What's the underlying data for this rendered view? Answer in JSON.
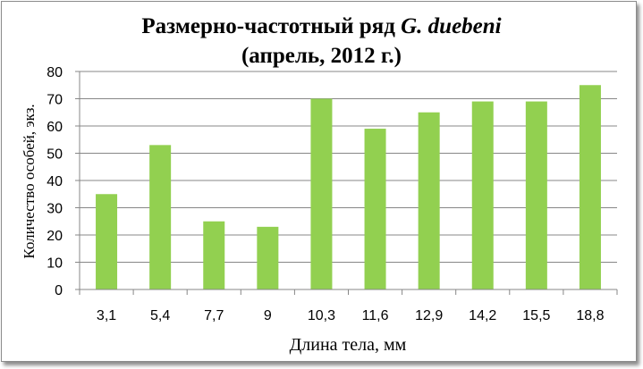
{
  "chart_data": {
    "type": "bar",
    "title_line1": "Размерно-частотный ряд ",
    "title_species": "G. duebeni",
    "title_line2": "(апрель, 2012 г.)",
    "xlabel": "Длина тела, мм",
    "ylabel": "Количество особей, экз.",
    "categories": [
      "3,1",
      "5,4",
      "7,7",
      "9",
      "10,3",
      "11,6",
      "12,9",
      "14,2",
      "15,5",
      "18,8"
    ],
    "values": [
      35,
      53,
      25,
      23,
      70,
      59,
      65,
      69,
      69,
      75
    ],
    "ylim": [
      0,
      80
    ],
    "yticks": [
      0,
      10,
      20,
      30,
      40,
      50,
      60,
      70,
      80
    ],
    "bar_color": "#92d050",
    "gridlines": true,
    "legend": false
  }
}
